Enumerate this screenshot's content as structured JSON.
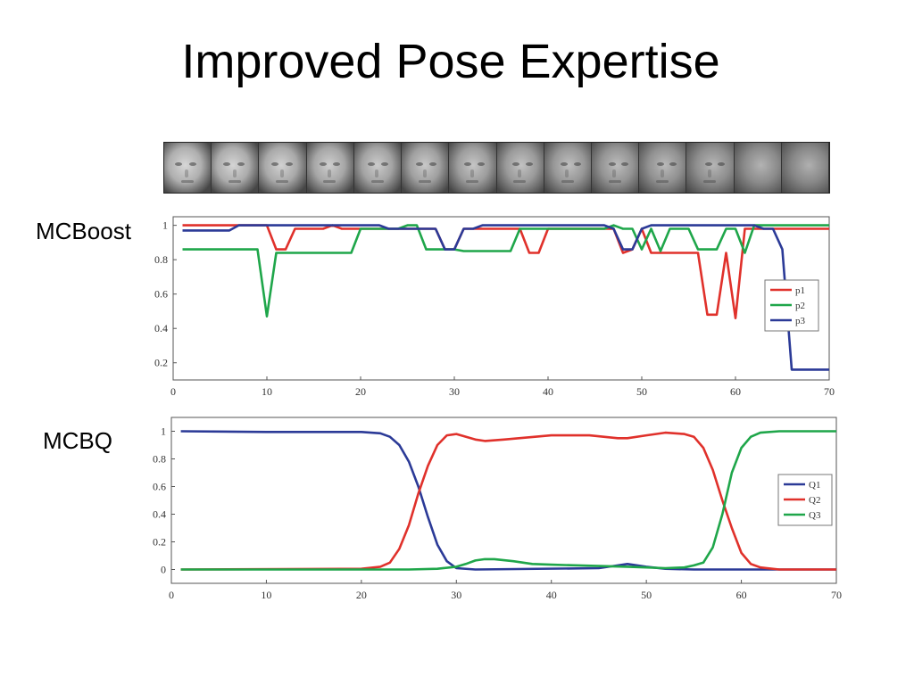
{
  "slide": {
    "title": "Improved Pose Expertise"
  },
  "face_strip": {
    "count": 14
  },
  "panels": [
    {
      "label": "MCBoost"
    },
    {
      "label": "MCBQ"
    }
  ],
  "chart_data": [
    {
      "type": "line",
      "title": "",
      "xlabel": "",
      "ylabel": "",
      "xlim": [
        0,
        70
      ],
      "ylim": [
        0.1,
        1.05
      ],
      "xticks": [
        0,
        10,
        20,
        30,
        40,
        50,
        60,
        70
      ],
      "yticks": [
        0.2,
        0.4,
        0.6,
        0.8,
        1
      ],
      "ytick_labels": [
        "0.2",
        "0.4",
        "0.6",
        "0.8",
        "1"
      ],
      "grid": false,
      "legend_position": "right",
      "series": [
        {
          "name": "p1",
          "color": "#e0312b",
          "points": [
            [
              1,
              1
            ],
            [
              10,
              1
            ],
            [
              11,
              0.86
            ],
            [
              12,
              0.86
            ],
            [
              13,
              0.98
            ],
            [
              16,
              0.98
            ],
            [
              17,
              1
            ],
            [
              18,
              0.98
            ],
            [
              24,
              0.98
            ],
            [
              28,
              0.98
            ],
            [
              29,
              0.86
            ],
            [
              30,
              0.86
            ],
            [
              31,
              0.98
            ],
            [
              37,
              0.98
            ],
            [
              38,
              0.84
            ],
            [
              39,
              0.84
            ],
            [
              40,
              0.98
            ],
            [
              47,
              0.98
            ],
            [
              48,
              0.84
            ],
            [
              49,
              0.86
            ],
            [
              50,
              0.98
            ],
            [
              51,
              0.84
            ],
            [
              56,
              0.84
            ],
            [
              57,
              0.48
            ],
            [
              58,
              0.48
            ],
            [
              59,
              0.84
            ],
            [
              60,
              0.46
            ],
            [
              61,
              0.98
            ],
            [
              70,
              0.98
            ]
          ]
        },
        {
          "name": "p2",
          "color": "#1fa64a",
          "points": [
            [
              1,
              0.86
            ],
            [
              9,
              0.86
            ],
            [
              10,
              0.47
            ],
            [
              11,
              0.84
            ],
            [
              19,
              0.84
            ],
            [
              20,
              0.98
            ],
            [
              22,
              0.98
            ],
            [
              23,
              0.98
            ],
            [
              24,
              0.98
            ],
            [
              25,
              1
            ],
            [
              26,
              1
            ],
            [
              27,
              0.86
            ],
            [
              30,
              0.86
            ],
            [
              31,
              0.85
            ],
            [
              36,
              0.85
            ],
            [
              37,
              0.98
            ],
            [
              40,
              0.98
            ],
            [
              46,
              0.98
            ],
            [
              47,
              1
            ],
            [
              48,
              0.98
            ],
            [
              49,
              0.98
            ],
            [
              50,
              0.86
            ],
            [
              51,
              0.98
            ],
            [
              52,
              0.85
            ],
            [
              53,
              0.98
            ],
            [
              55,
              0.98
            ],
            [
              56,
              0.86
            ],
            [
              58,
              0.86
            ],
            [
              59,
              0.98
            ],
            [
              60,
              0.98
            ],
            [
              61,
              0.84
            ],
            [
              62,
              1
            ],
            [
              70,
              1
            ]
          ]
        },
        {
          "name": "p3",
          "color": "#2b3a97",
          "points": [
            [
              1,
              0.97
            ],
            [
              6,
              0.97
            ],
            [
              7,
              1
            ],
            [
              10,
              1
            ],
            [
              11,
              1
            ],
            [
              22,
              1
            ],
            [
              23,
              0.98
            ],
            [
              27,
              0.98
            ],
            [
              28,
              0.98
            ],
            [
              29,
              0.86
            ],
            [
              30,
              0.86
            ],
            [
              31,
              0.98
            ],
            [
              32,
              0.98
            ],
            [
              33,
              1
            ],
            [
              43,
              1
            ],
            [
              44,
              1
            ],
            [
              46,
              1
            ],
            [
              47,
              0.98
            ],
            [
              48,
              0.86
            ],
            [
              49,
              0.86
            ],
            [
              50,
              0.98
            ],
            [
              51,
              1
            ],
            [
              55,
              1
            ],
            [
              56,
              1
            ],
            [
              62,
              1
            ],
            [
              63,
              0.98
            ],
            [
              64,
              0.98
            ],
            [
              65,
              0.86
            ],
            [
              66,
              0.16
            ],
            [
              70,
              0.16
            ]
          ]
        }
      ]
    },
    {
      "type": "line",
      "title": "",
      "xlabel": "",
      "ylabel": "",
      "xlim": [
        0,
        70
      ],
      "ylim": [
        -0.1,
        1.1
      ],
      "xticks": [
        0,
        10,
        20,
        30,
        40,
        50,
        60,
        70
      ],
      "yticks": [
        0,
        0.2,
        0.4,
        0.6,
        0.8,
        1
      ],
      "ytick_labels": [
        "0",
        "0.2",
        "0.4",
        "0.6",
        "0.8",
        "1"
      ],
      "grid": false,
      "legend_position": "right",
      "series": [
        {
          "name": "Q1",
          "color": "#2b3a97",
          "points": [
            [
              1,
              1
            ],
            [
              10,
              0.995
            ],
            [
              20,
              0.995
            ],
            [
              22,
              0.985
            ],
            [
              23,
              0.96
            ],
            [
              24,
              0.9
            ],
            [
              25,
              0.78
            ],
            [
              26,
              0.6
            ],
            [
              27,
              0.38
            ],
            [
              28,
              0.18
            ],
            [
              29,
              0.06
            ],
            [
              30,
              0.01
            ],
            [
              32,
              0
            ],
            [
              45,
              0.01
            ],
            [
              47,
              0.03
            ],
            [
              48,
              0.04
            ],
            [
              50,
              0.02
            ],
            [
              52,
              0.005
            ],
            [
              55,
              0
            ],
            [
              70,
              0
            ]
          ]
        },
        {
          "name": "Q2",
          "color": "#e0312b",
          "points": [
            [
              1,
              0
            ],
            [
              20,
              0.005
            ],
            [
              22,
              0.02
            ],
            [
              23,
              0.05
            ],
            [
              24,
              0.15
            ],
            [
              25,
              0.32
            ],
            [
              26,
              0.55
            ],
            [
              27,
              0.75
            ],
            [
              28,
              0.9
            ],
            [
              29,
              0.97
            ],
            [
              30,
              0.98
            ],
            [
              32,
              0.94
            ],
            [
              33,
              0.93
            ],
            [
              35,
              0.94
            ],
            [
              40,
              0.97
            ],
            [
              44,
              0.97
            ],
            [
              47,
              0.95
            ],
            [
              48,
              0.95
            ],
            [
              50,
              0.97
            ],
            [
              52,
              0.99
            ],
            [
              54,
              0.98
            ],
            [
              55,
              0.96
            ],
            [
              56,
              0.88
            ],
            [
              57,
              0.72
            ],
            [
              58,
              0.5
            ],
            [
              59,
              0.3
            ],
            [
              60,
              0.12
            ],
            [
              61,
              0.04
            ],
            [
              62,
              0.015
            ],
            [
              64,
              0
            ],
            [
              70,
              0
            ]
          ]
        },
        {
          "name": "Q3",
          "color": "#1fa64a",
          "points": [
            [
              1,
              0
            ],
            [
              25,
              0
            ],
            [
              28,
              0.005
            ],
            [
              30,
              0.02
            ],
            [
              31,
              0.04
            ],
            [
              32,
              0.065
            ],
            [
              33,
              0.075
            ],
            [
              34,
              0.075
            ],
            [
              36,
              0.06
            ],
            [
              38,
              0.04
            ],
            [
              40,
              0.035
            ],
            [
              45,
              0.025
            ],
            [
              48,
              0.02
            ],
            [
              50,
              0.015
            ],
            [
              52,
              0.01
            ],
            [
              54,
              0.015
            ],
            [
              55,
              0.03
            ],
            [
              56,
              0.05
            ],
            [
              57,
              0.16
            ],
            [
              58,
              0.4
            ],
            [
              59,
              0.7
            ],
            [
              60,
              0.88
            ],
            [
              61,
              0.96
            ],
            [
              62,
              0.99
            ],
            [
              64,
              1
            ],
            [
              70,
              1
            ]
          ]
        }
      ]
    }
  ]
}
